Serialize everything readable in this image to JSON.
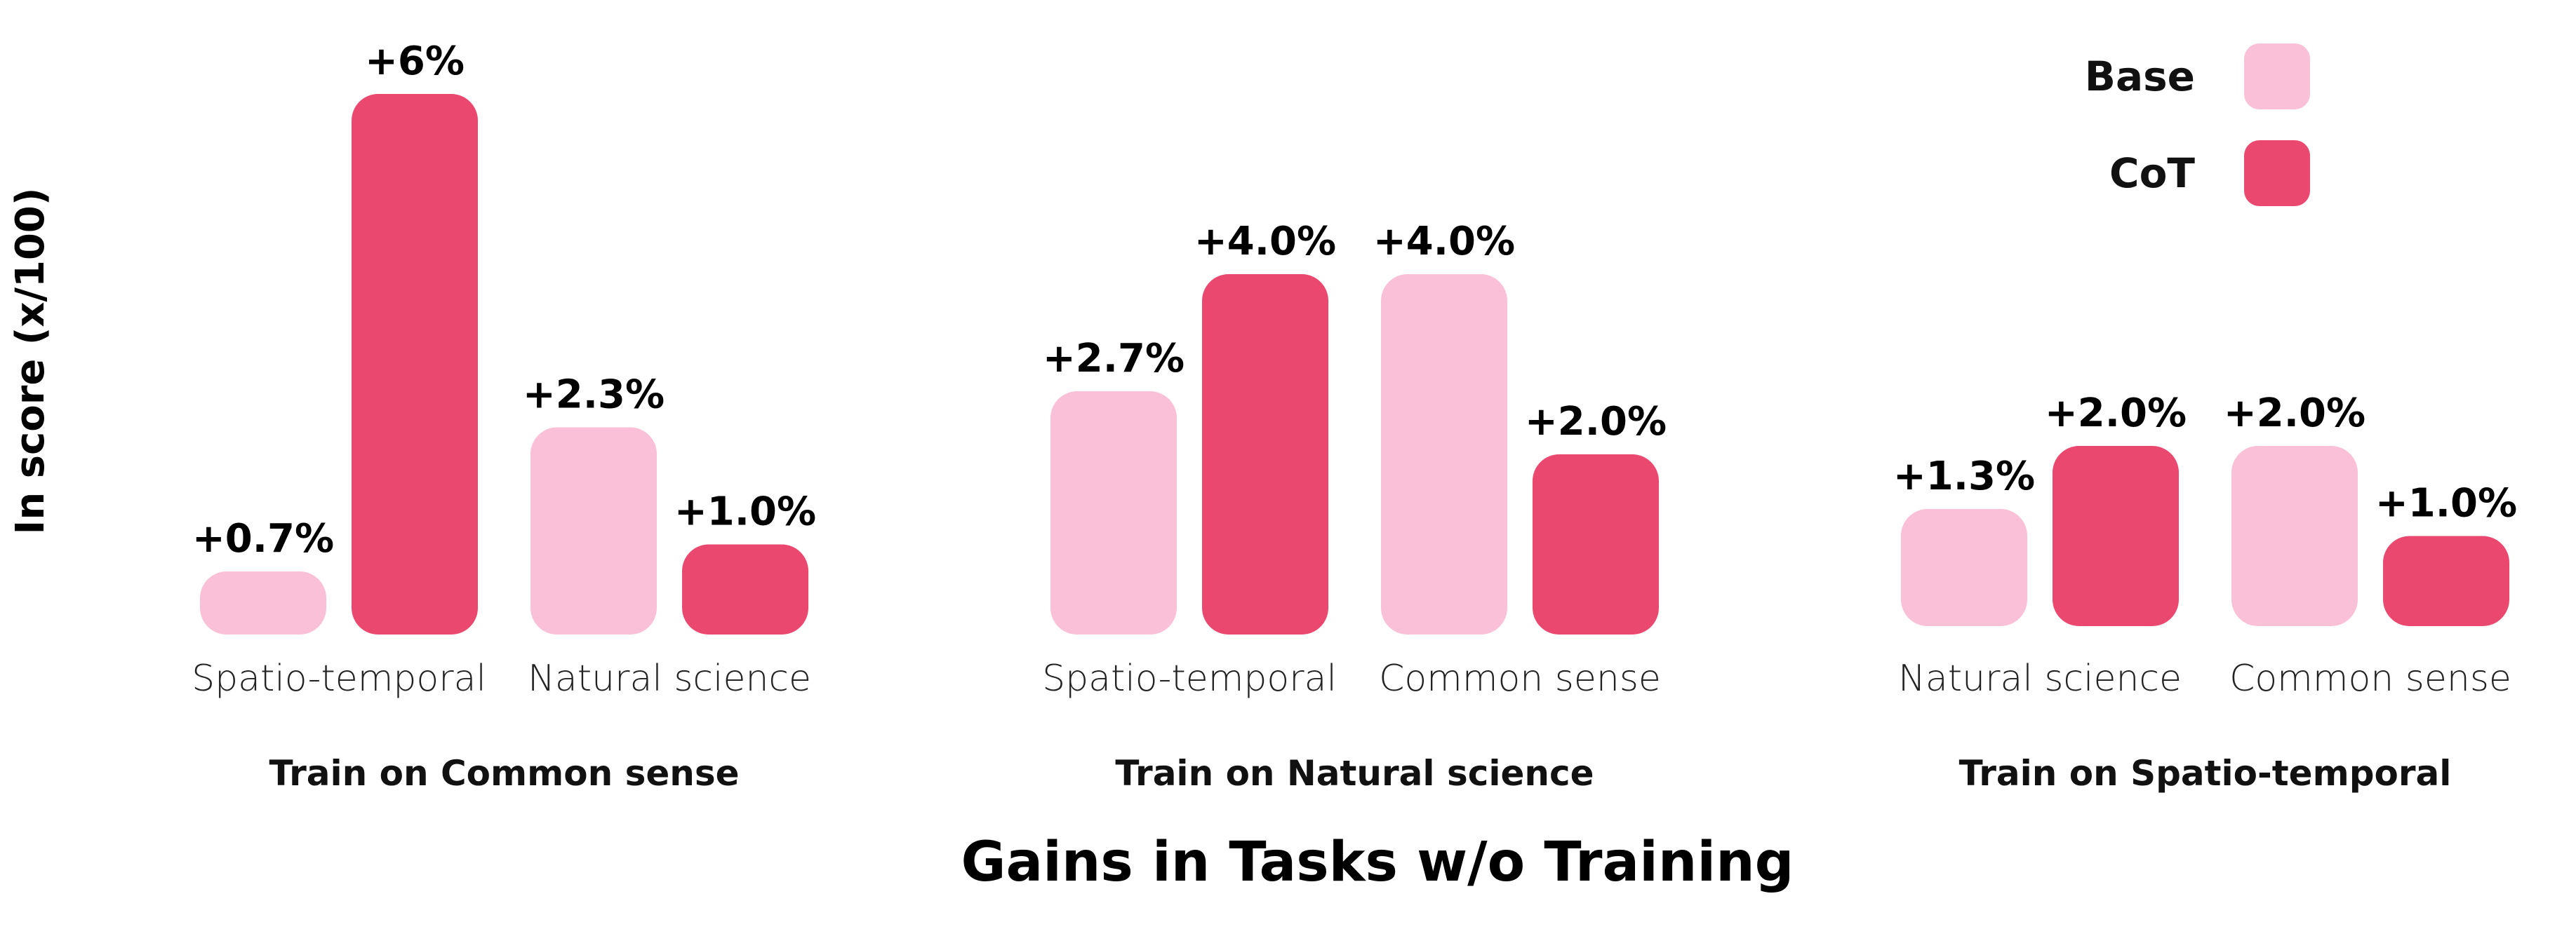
{
  "chart_data": {
    "type": "bar",
    "title": "Gains in Tasks w/o Training",
    "ylabel": "In score (x/100)",
    "xlabel": "",
    "ylim": [
      0,
      6.5
    ],
    "grid": false,
    "legend_position": "top-right",
    "colors": {
      "Base": "#f9c0d7",
      "CoT": "#eb4870"
    },
    "legend": [
      {
        "name": "Base",
        "color": "#f9c0d7"
      },
      {
        "name": "CoT",
        "color": "#eb4870"
      }
    ],
    "groups": [
      {
        "title": "Train on Common sense",
        "categories": [
          "Spatio-temporal",
          "Natural science"
        ],
        "series": [
          {
            "name": "Base",
            "values": [
              0.7,
              2.3
            ],
            "labels": [
              "+0.7%",
              "+2.3%"
            ]
          },
          {
            "name": "CoT",
            "values": [
              6.0,
              1.0
            ],
            "labels": [
              "+6%",
              "+1.0%"
            ]
          }
        ]
      },
      {
        "title": "Train on Natural science",
        "categories": [
          "Spatio-temporal",
          "Common sense"
        ],
        "series": [
          {
            "name": "Base",
            "values": [
              2.7,
              4.0
            ],
            "labels": [
              "+2.7%",
              "+4.0%"
            ]
          },
          {
            "name": "CoT",
            "values": [
              4.0,
              2.0
            ],
            "labels": [
              "+4.0%",
              "+2.0%"
            ]
          }
        ]
      },
      {
        "title": "Train on Spatio-temporal",
        "categories": [
          "Natural science",
          "Common sense"
        ],
        "series": [
          {
            "name": "Base",
            "values": [
              1.3,
              2.0
            ],
            "labels": [
              "+1.3%",
              "+2.0%"
            ]
          },
          {
            "name": "CoT",
            "values": [
              2.0,
              1.0
            ],
            "labels": [
              "+2.0%",
              "+1.0%"
            ]
          }
        ]
      }
    ]
  }
}
